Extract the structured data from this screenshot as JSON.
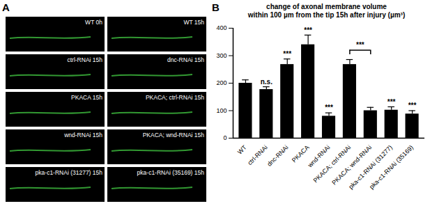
{
  "panel_a": {
    "label": "A",
    "images": [
      "WT 0h",
      "WT 15h",
      "ctrl-RNAi 15h",
      "dnc-RNAi 15h",
      "PKACA 15h",
      "PKACA; ctrl-RNAi 15h",
      "wnd-RNAi 15h",
      "PKACA; wnd-RNAi 15h",
      "pka-c1-RNAi (31277) 15h",
      "pka-c1-RNAi (35169) 15h"
    ]
  },
  "chart_data": {
    "type": "bar",
    "panel_label": "B",
    "title": [
      "change of axonal membrane volume",
      "within 100 µm from the tip 15h after injury (µm³)"
    ],
    "categories": [
      "WT",
      "ctrl-RNAi",
      "dnc-RNAi",
      "PKACA",
      "wnd-RNAi",
      "PKACA; ctrl-RNAi",
      "PKACA; wnd-RNAi",
      "pka-c1-RNAi (31277)",
      "pka-c1-RNAi (35169)"
    ],
    "values": [
      200,
      177,
      268,
      340,
      80,
      268,
      100,
      102,
      88
    ],
    "errors": [
      12,
      10,
      20,
      35,
      12,
      18,
      12,
      12,
      12
    ],
    "significance": [
      null,
      "n.s.",
      "***",
      "***",
      "***",
      null,
      null,
      "***",
      "***"
    ],
    "bracket": {
      "from": "PKACA; ctrl-RNAi",
      "to": "PKACA; wnd-RNAi",
      "label": "***",
      "value": 320
    },
    "color": "#000000",
    "ylim": [
      0,
      400
    ],
    "yticks": [
      0,
      100,
      200,
      300,
      400
    ],
    "grid": false
  }
}
